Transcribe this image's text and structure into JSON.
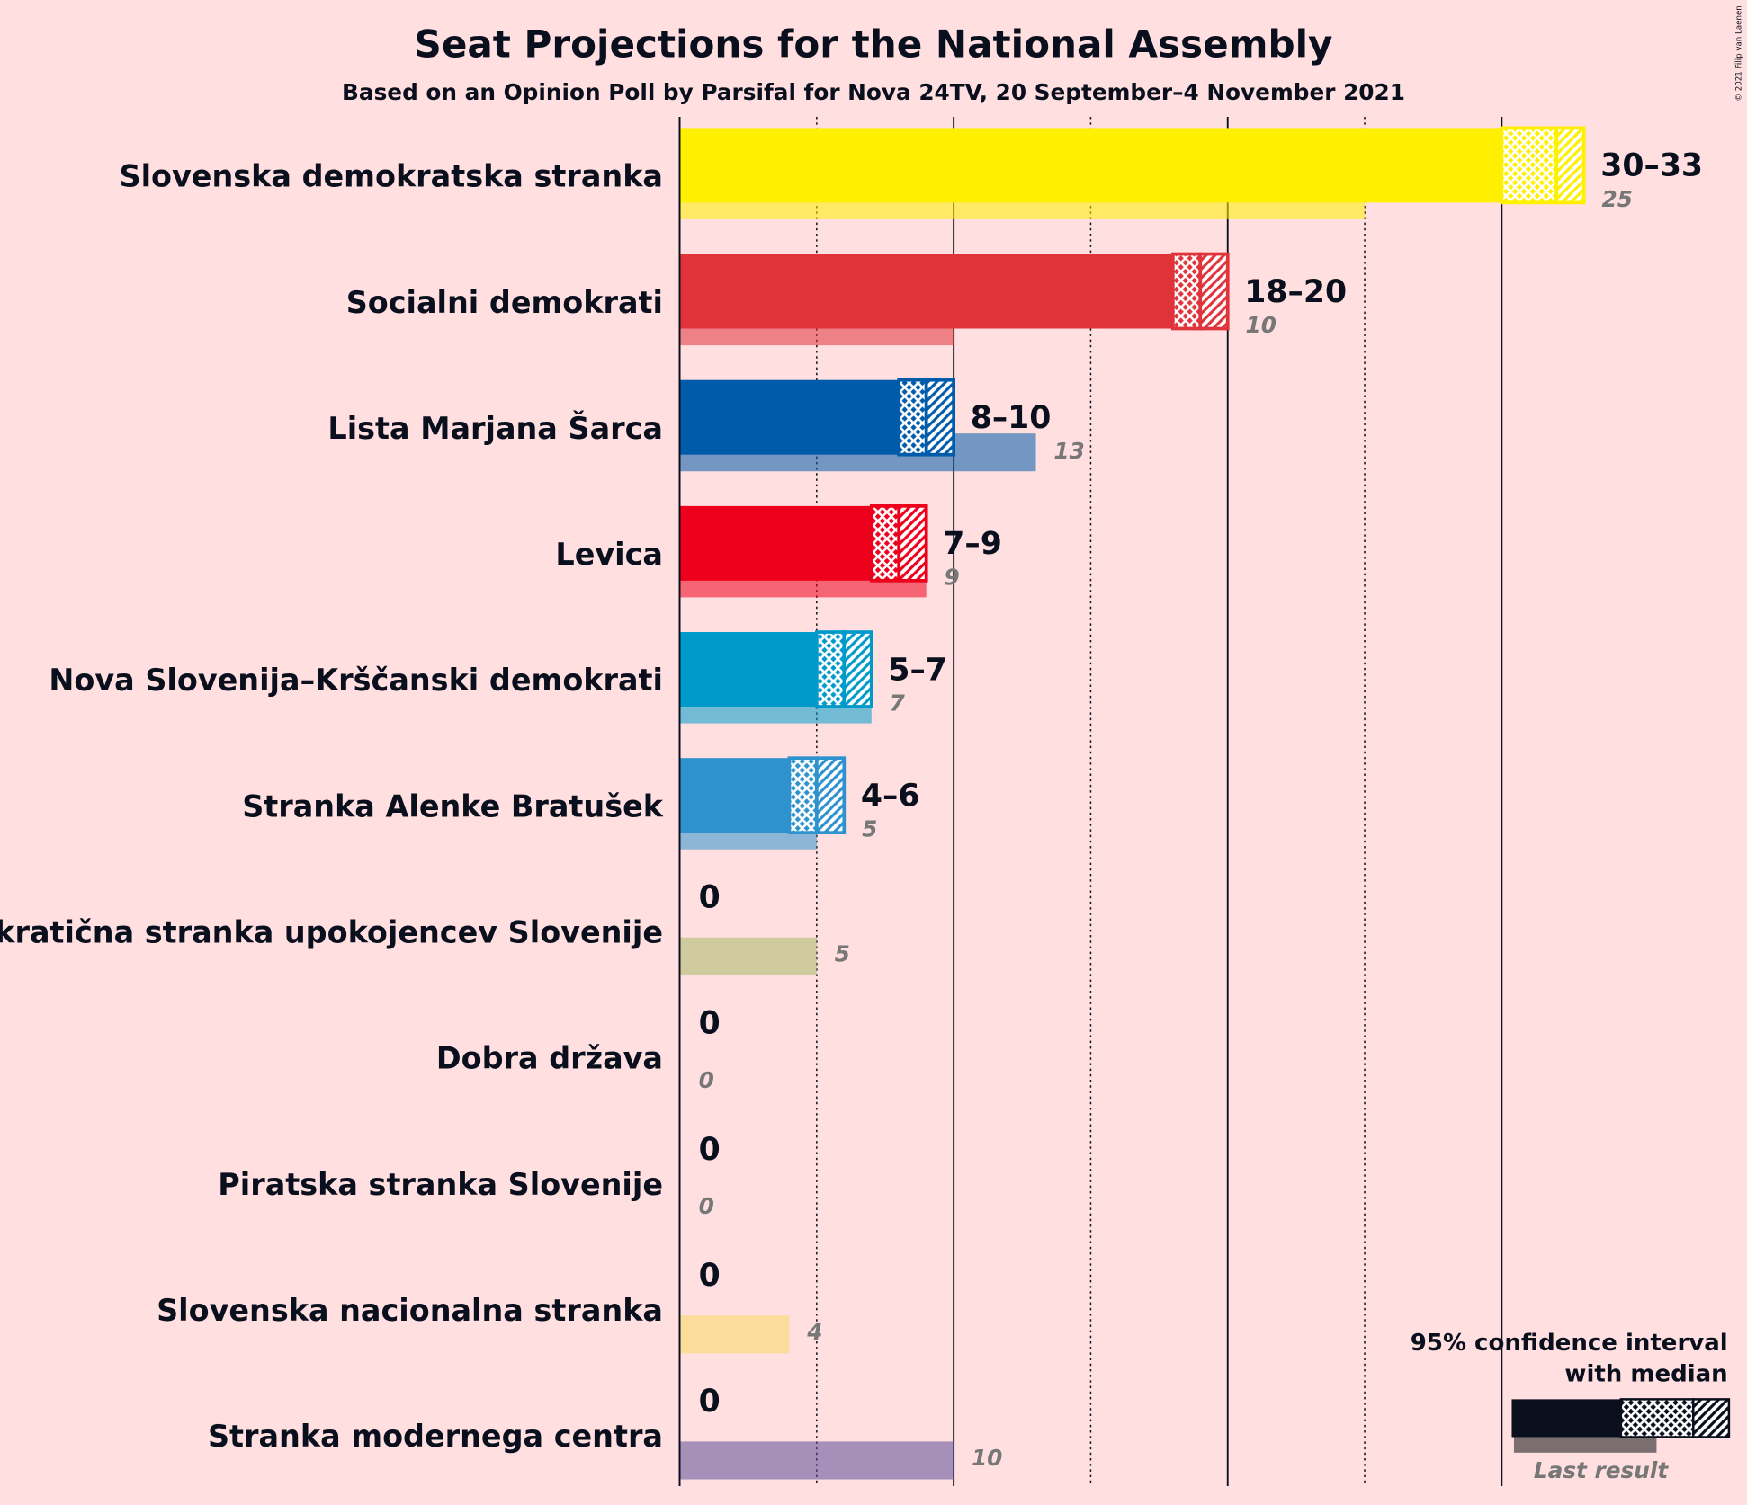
{
  "chart_data": {
    "type": "bar",
    "title": "Seat Projections for the National Assembly",
    "subtitle": "Based on an Opinion Poll by Parsifal for Nova 24TV, 20 September–4 November 2021",
    "copyright": "© 2021 Filip van Laenen",
    "xlim": [
      0,
      35
    ],
    "xticks": [
      0,
      5,
      10,
      15,
      20,
      25,
      30
    ],
    "legend": {
      "lines": [
        "95% confidence interval",
        "with median"
      ],
      "last_result": "Last result",
      "color": "#0a0f1e"
    },
    "series": [
      {
        "name": "Slovenska demokratska stranka",
        "color": "#fff000",
        "low": 30,
        "median": 32,
        "high": 33,
        "range_label": "30–33",
        "last": 25
      },
      {
        "name": "Socialni demokrati",
        "color": "#e0333a",
        "low": 18,
        "median": 19,
        "high": 20,
        "range_label": "18–20",
        "last": 10
      },
      {
        "name": "Lista Marjana Šarca",
        "color": "#005baa",
        "low": 8,
        "median": 9,
        "high": 10,
        "range_label": "8–10",
        "last": 13
      },
      {
        "name": "Levica",
        "color": "#ee001c",
        "low": 7,
        "median": 8,
        "high": 9,
        "range_label": "7–9",
        "last": 9
      },
      {
        "name": "Nova Slovenija–Krščanski demokrati",
        "color": "#009aca",
        "low": 5,
        "median": 6,
        "high": 7,
        "range_label": "5–7",
        "last": 7
      },
      {
        "name": "Stranka Alenke Bratušek",
        "color": "#2e92ce",
        "low": 4,
        "median": 5,
        "high": 6,
        "range_label": "4–6",
        "last": 5
      },
      {
        "name": "Demokratična stranka upokojencev Slovenije",
        "color": "#a9b86a",
        "low": 0,
        "median": 0,
        "high": 0,
        "range_label": "0",
        "last": 5
      },
      {
        "name": "Dobra država",
        "low": 0,
        "median": 0,
        "high": 0,
        "range_label": "0",
        "last": 0
      },
      {
        "name": "Piratska stranka Slovenije",
        "low": 0,
        "median": 0,
        "high": 0,
        "range_label": "0",
        "last": 0
      },
      {
        "name": "Slovenska nacionalna stranka",
        "color": "#f7d860",
        "low": 0,
        "median": 0,
        "high": 0,
        "range_label": "0",
        "last": 4
      },
      {
        "name": "Stranka modernega centra",
        "color": "#5d4d98",
        "low": 0,
        "median": 0,
        "high": 0,
        "range_label": "0",
        "last": 10
      }
    ]
  }
}
